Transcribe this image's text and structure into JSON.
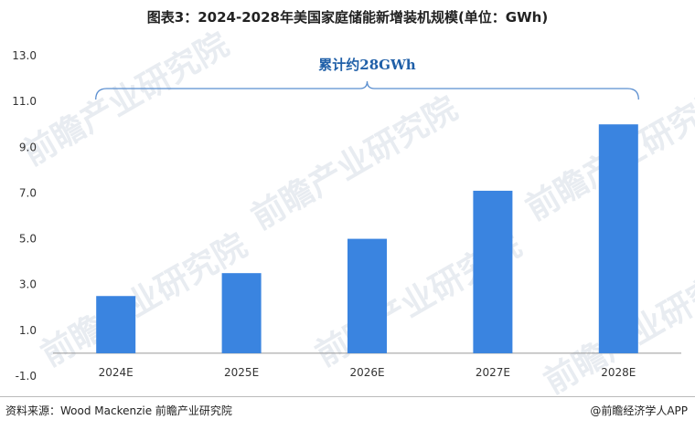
{
  "header": {
    "title": "图表3：2024-2028年美国家庭储能新增装机规模(单位：GWh)"
  },
  "footer": {
    "source": "资料来源：Wood Mackenzie 前瞻产业研究院",
    "brand": "@前瞻经济学人APP"
  },
  "watermark": "前瞻产业研究院",
  "chart_data": {
    "type": "bar",
    "categories": [
      "2024E",
      "2025E",
      "2026E",
      "2027E",
      "2028E"
    ],
    "values": [
      2.5,
      3.5,
      5.0,
      7.1,
      10.0
    ],
    "ylim": [
      -1.0,
      13.0
    ],
    "yticks": [
      "13.0",
      "11.0",
      "9.0",
      "7.0",
      "5.0",
      "3.0",
      "1.0",
      "-1.0"
    ],
    "bar_color": "#3a84e0",
    "annotation": {
      "text": "累计约28GWh",
      "color": "#1f5fa8"
    },
    "grid": false
  }
}
